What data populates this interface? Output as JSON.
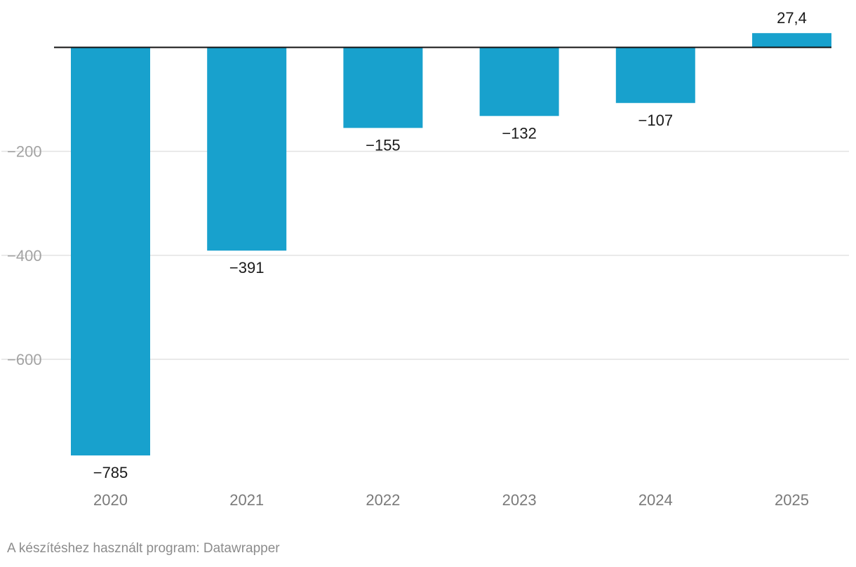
{
  "chart_data": {
    "type": "bar",
    "categories": [
      "2020",
      "2021",
      "2022",
      "2023",
      "2024",
      "2025"
    ],
    "values": [
      -785,
      -391,
      -155,
      -132,
      -107,
      27.4
    ],
    "value_labels": [
      "−785",
      "−391",
      "−155",
      "−132",
      "−107",
      "27,4"
    ],
    "title": "",
    "xlabel": "",
    "ylabel": "",
    "ylim": [
      -785,
      27.4
    ],
    "yticks": [
      -200,
      -400,
      -600
    ],
    "ytick_labels": [
      "−200",
      "−400",
      "−600"
    ],
    "grid": true,
    "legend": "none",
    "bar_color": "#18a1cd"
  },
  "footer": {
    "credit": "A készítéshez használt program: Datawrapper"
  }
}
